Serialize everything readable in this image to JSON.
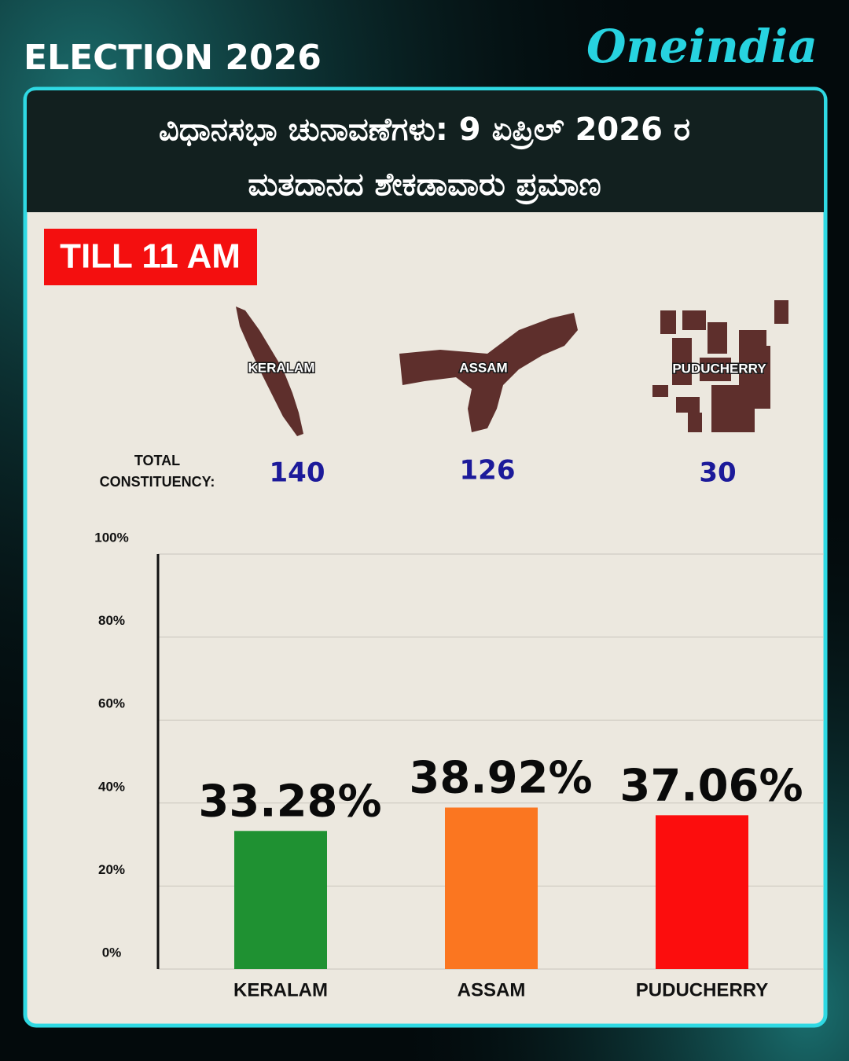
{
  "header": {
    "election": "ELECTION 2026",
    "brand": "Oneindia"
  },
  "title": {
    "line1": "ವಿಧಾನಸಭಾ ಚುನಾವಣೆಗಳು: 9 ಏಪ್ರಿಲ್ 2026 ರ",
    "line2": "ಮತದಾನದ ಶೇಕಡಾವಾರು ಪ್ರಮಾಣ"
  },
  "badge": "TILL 11 AM",
  "maps": [
    "KERALAM",
    "ASSAM",
    "PUDUCHERRY"
  ],
  "constituency": {
    "label_line1": "TOTAL",
    "label_line2": "CONSTITUENCY:",
    "values": [
      140,
      126,
      30
    ]
  },
  "chart_data": {
    "type": "bar",
    "categories": [
      "KERALAM",
      "ASSAM",
      "PUDUCHERRY"
    ],
    "values": [
      33.28,
      38.92,
      37.06
    ],
    "value_labels": [
      "33.28%",
      "38.92%",
      "37.06%"
    ],
    "colors": [
      "#1f9132",
      "#fb7620",
      "#fc0d0d"
    ],
    "ylim": [
      0,
      100
    ],
    "yticks": [
      {
        "value": 0,
        "label": "0%"
      },
      {
        "value": 20,
        "label": "20%"
      },
      {
        "value": 40,
        "label": "40%"
      },
      {
        "value": 60,
        "label": "60%"
      },
      {
        "value": 80,
        "label": "80%"
      },
      {
        "value": 100,
        "label": "100%"
      }
    ],
    "grid": true
  }
}
